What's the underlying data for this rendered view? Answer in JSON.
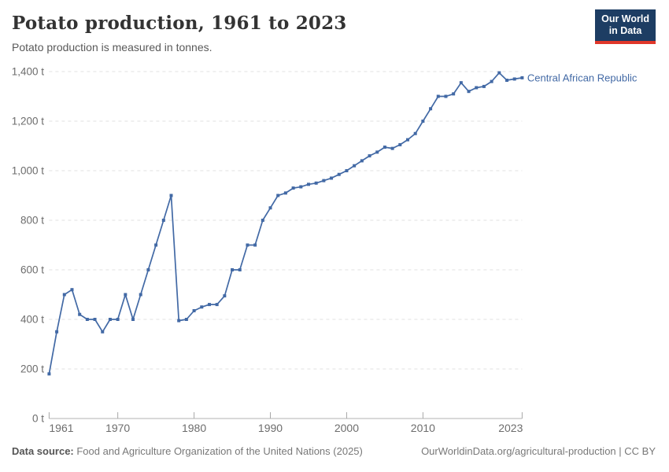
{
  "header": {
    "title": "Potato production, 1961 to 2023",
    "subtitle": "Potato production is measured in tonnes.",
    "logo": {
      "line1": "Our World",
      "line2": "in Data",
      "bg": "#1d3d63",
      "accent": "#e0372a"
    }
  },
  "chart_data": {
    "type": "line",
    "title": "Potato production, 1961 to 2023",
    "xlabel": "",
    "ylabel": "tonnes",
    "xlim": [
      1961,
      2023
    ],
    "ylim": [
      0,
      1400
    ],
    "grid": "horizontal-dashed",
    "legend_position": "end-of-line",
    "x_ticks": [
      1961,
      1970,
      1980,
      1990,
      2000,
      2010,
      2023
    ],
    "y_ticks": [
      0,
      200,
      400,
      600,
      800,
      1000,
      1200,
      1400
    ],
    "y_tick_labels": [
      "0 t",
      "200 t",
      "400 t",
      "600 t",
      "800 t",
      "1,000 t",
      "1,200 t",
      "1,400 t"
    ],
    "series": [
      {
        "name": "Central African Republic",
        "color": "#4269a5",
        "x": [
          1961,
          1962,
          1963,
          1964,
          1965,
          1966,
          1967,
          1968,
          1969,
          1970,
          1971,
          1972,
          1973,
          1974,
          1975,
          1976,
          1977,
          1978,
          1979,
          1980,
          1981,
          1982,
          1983,
          1984,
          1985,
          1986,
          1987,
          1988,
          1989,
          1990,
          1991,
          1992,
          1993,
          1994,
          1995,
          1996,
          1997,
          1998,
          1999,
          2000,
          2001,
          2002,
          2003,
          2004,
          2005,
          2006,
          2007,
          2008,
          2009,
          2010,
          2011,
          2012,
          2013,
          2014,
          2015,
          2016,
          2017,
          2018,
          2019,
          2020,
          2021,
          2022,
          2023
        ],
        "values": [
          180,
          350,
          500,
          520,
          420,
          400,
          400,
          350,
          400,
          400,
          500,
          400,
          500,
          600,
          700,
          800,
          900,
          395,
          400,
          435,
          450,
          460,
          460,
          495,
          600,
          600,
          700,
          700,
          800,
          850,
          900,
          910,
          930,
          935,
          945,
          950,
          960,
          970,
          985,
          1000,
          1020,
          1040,
          1060,
          1075,
          1095,
          1090,
          1105,
          1125,
          1150,
          1200,
          1250,
          1300,
          1300,
          1310,
          1355,
          1320,
          1335,
          1340,
          1360,
          1395,
          1365,
          1370,
          1375
        ]
      }
    ]
  },
  "footer": {
    "source_label": "Data source:",
    "source_text": " Food and Agriculture Organization of the United Nations (2025)",
    "link_text": "OurWorldinData.org/agricultural-production | CC BY"
  }
}
